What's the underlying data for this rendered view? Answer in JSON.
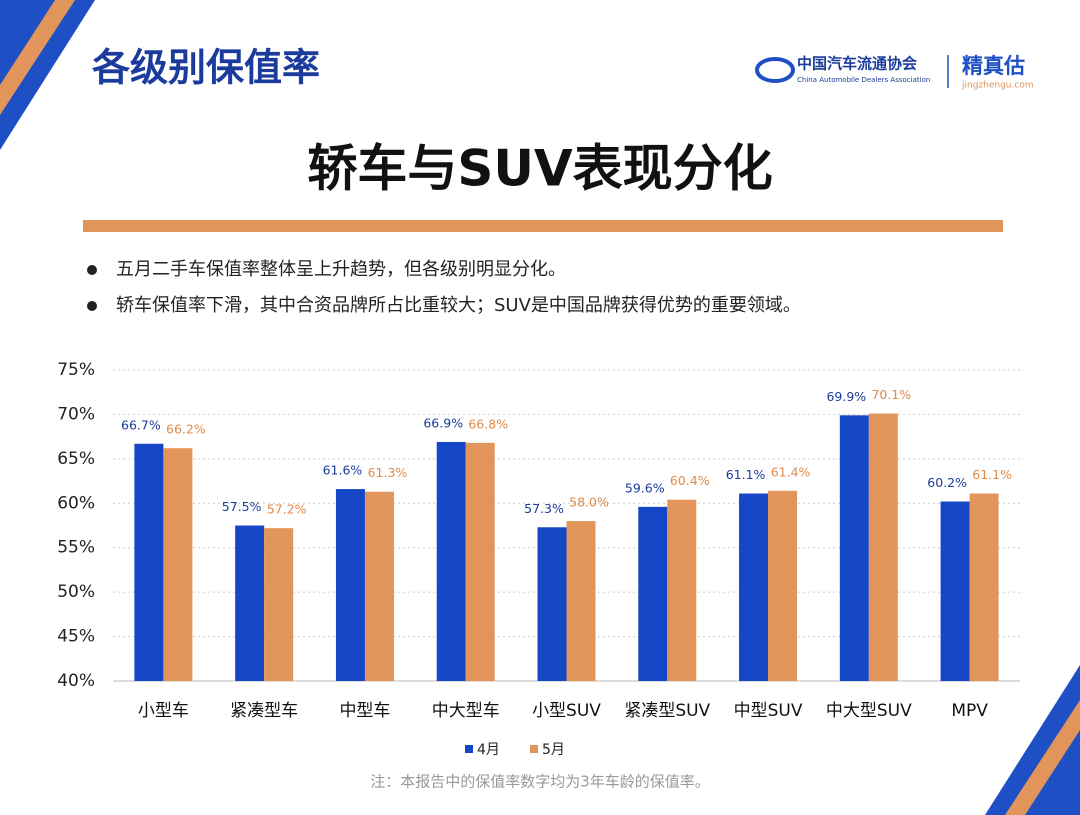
{
  "header": {
    "title": "各级别保值率",
    "logo_cn": "中国汽车流通协会",
    "logo_en": "China Automobile Dealers Association",
    "brand": "精真估",
    "brand_url": "jingzhengu.com"
  },
  "heading": "轿车与SUV表现分化",
  "bullets": [
    "五月二手车保值率整体呈上升趋势，但各级别明显分化。",
    "轿车保值率下滑，其中合资品牌所占比重较大；SUV是中国品牌获得优势的重要领域。"
  ],
  "note": "注：本报告中的保值率数字均为3年车龄的保值率。",
  "chart_data": {
    "type": "bar",
    "categories": [
      "小型车",
      "紧凑型车",
      "中型车",
      "中大型车",
      "小型SUV",
      "紧凑型SUV",
      "中型SUV",
      "中大型SUV",
      "MPV"
    ],
    "series": [
      {
        "name": "4月",
        "color": "#1546c6",
        "values": [
          66.7,
          57.5,
          61.6,
          66.9,
          57.3,
          59.6,
          61.1,
          69.9,
          60.2
        ],
        "value_labels": [
          "66.7%",
          "57.5%",
          "61.6%",
          "66.9%",
          "57.3%",
          "59.6%",
          "61.1%",
          "69.9%",
          "60.2%"
        ]
      },
      {
        "name": "5月",
        "color": "#e2955a",
        "values": [
          66.2,
          57.2,
          61.3,
          66.8,
          58.0,
          60.4,
          61.4,
          70.1,
          61.1
        ],
        "value_labels": [
          "66.2%",
          "57.2%",
          "61.3%",
          "66.8%",
          "58.0%",
          "60.4%",
          "61.4%",
          "70.1%",
          "61.1%"
        ]
      }
    ],
    "ylim": [
      40,
      75
    ],
    "yticks": [
      {
        "value": 40,
        "label": "40%"
      },
      {
        "value": 45,
        "label": "45%"
      },
      {
        "value": 50,
        "label": "50%"
      },
      {
        "value": 55,
        "label": "55%"
      },
      {
        "value": 60,
        "label": "60%"
      },
      {
        "value": 65,
        "label": "65%"
      },
      {
        "value": 70,
        "label": "70%"
      },
      {
        "value": 75,
        "label": "75%"
      }
    ],
    "grid": true,
    "legend": "bottom"
  }
}
